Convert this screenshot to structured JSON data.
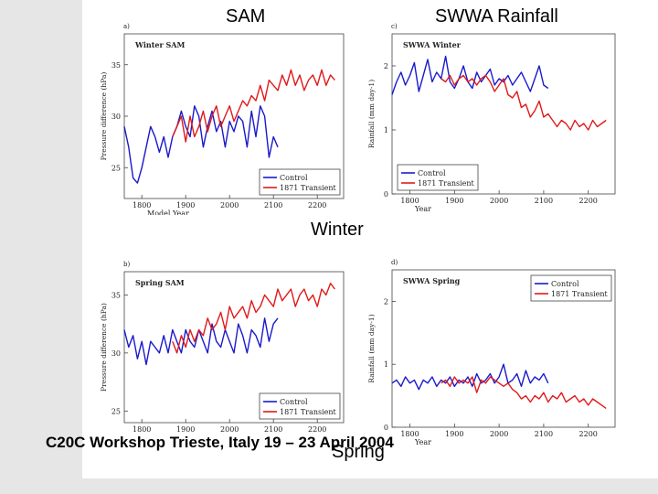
{
  "headings": {
    "sam": "SAM",
    "swwa": "SWWA Rainfall",
    "winter": "Winter",
    "spring": "Spring",
    "footer": "C20C Workshop Trieste, Italy 19 – 23 April 2004"
  },
  "colors": {
    "control": "#1a1acc",
    "transient": "#e01a1a"
  },
  "chart_data": [
    {
      "id": "a",
      "panel_label": "a)",
      "type": "line",
      "title": "Winter SAM",
      "xlabel": "Model Year",
      "ylabel": "Pressure difference (hPa)",
      "xlim": [
        1760,
        2260
      ],
      "ylim": [
        22,
        38
      ],
      "xticks": [
        1800,
        1900,
        2000,
        2100,
        2200
      ],
      "yticks": [
        25,
        30,
        35
      ],
      "legend_position": "bottom-right",
      "series": [
        {
          "name": "Control",
          "x": [
            1760,
            1770,
            1780,
            1790,
            1800,
            1810,
            1820,
            1830,
            1840,
            1850,
            1860,
            1870,
            1880,
            1890,
            1900,
            1910,
            1920,
            1930,
            1940,
            1950,
            1960,
            1970,
            1980,
            1990,
            2000,
            2010,
            2020,
            2030,
            2040,
            2050,
            2060,
            2070,
            2080,
            2090,
            2100,
            2110
          ],
          "y": [
            29,
            27,
            24,
            23.5,
            25,
            27,
            29,
            28,
            26.5,
            28,
            26,
            28,
            29,
            30.5,
            29,
            28,
            31,
            30,
            27,
            29,
            30.5,
            28.5,
            29.5,
            27,
            29.5,
            28.5,
            30,
            29.5,
            27,
            30.5,
            28,
            31,
            30,
            26,
            28,
            27
          ]
        },
        {
          "name": "1871 Transient",
          "x": [
            1870,
            1880,
            1890,
            1900,
            1910,
            1920,
            1930,
            1940,
            1950,
            1960,
            1970,
            1980,
            1990,
            2000,
            2010,
            2020,
            2030,
            2040,
            2050,
            2060,
            2070,
            2080,
            2090,
            2100,
            2110,
            2120,
            2130,
            2140,
            2150,
            2160,
            2170,
            2180,
            2190,
            2200,
            2210,
            2220,
            2230,
            2240
          ],
          "y": [
            28,
            29,
            30,
            27.5,
            30,
            28,
            29,
            30.5,
            28.5,
            30,
            31,
            29,
            30,
            31,
            29.5,
            30.5,
            31.5,
            31,
            32,
            31.5,
            33,
            31.5,
            33.5,
            33,
            32.5,
            34,
            33,
            34.5,
            33,
            34,
            32.5,
            33.5,
            34,
            33,
            34.5,
            33,
            34,
            33.5
          ]
        }
      ]
    },
    {
      "id": "b",
      "panel_label": "b)",
      "type": "line",
      "title": "Spring SAM",
      "xlabel": "",
      "ylabel": "Pressure difference (hPa)",
      "xlim": [
        1760,
        2260
      ],
      "ylim": [
        24,
        37
      ],
      "xticks": [
        1800,
        1900,
        2000,
        2100,
        2200
      ],
      "yticks": [
        25,
        30,
        35
      ],
      "legend_position": "bottom-right",
      "series": [
        {
          "name": "Control",
          "x": [
            1760,
            1770,
            1780,
            1790,
            1800,
            1810,
            1820,
            1830,
            1840,
            1850,
            1860,
            1870,
            1880,
            1890,
            1900,
            1910,
            1920,
            1930,
            1940,
            1950,
            1960,
            1970,
            1980,
            1990,
            2000,
            2010,
            2020,
            2030,
            2040,
            2050,
            2060,
            2070,
            2080,
            2090,
            2100,
            2110
          ],
          "y": [
            32,
            30.5,
            31.5,
            29.5,
            31,
            29,
            31,
            30.5,
            30,
            31.5,
            30,
            32,
            31,
            30,
            32,
            31,
            30.5,
            32,
            31,
            30,
            32.5,
            31,
            30.5,
            32,
            31,
            30,
            32.5,
            31.5,
            30,
            32,
            31.5,
            30.5,
            33,
            31,
            32.5,
            33
          ]
        },
        {
          "name": "1871 Transient",
          "x": [
            1870,
            1880,
            1890,
            1900,
            1910,
            1920,
            1930,
            1940,
            1950,
            1960,
            1970,
            1980,
            1990,
            2000,
            2010,
            2020,
            2030,
            2040,
            2050,
            2060,
            2070,
            2080,
            2090,
            2100,
            2110,
            2120,
            2130,
            2140,
            2150,
            2160,
            2170,
            2180,
            2190,
            2200,
            2210,
            2220,
            2230,
            2240
          ],
          "y": [
            31,
            30,
            31.5,
            30.5,
            32,
            31,
            32,
            31.5,
            33,
            32,
            32.5,
            33.5,
            32,
            34,
            33,
            33.5,
            34,
            33,
            34.5,
            33.5,
            34,
            35,
            34.5,
            34,
            35.5,
            34.5,
            35,
            35.5,
            34,
            35,
            35.5,
            34.5,
            35,
            34,
            35.5,
            35,
            36,
            35.5
          ]
        }
      ]
    },
    {
      "id": "c",
      "panel_label": "c)",
      "type": "line",
      "title": "SWWA Winter",
      "xlabel": "Year",
      "ylabel": "Rainfall (mm day-1)",
      "xlim": [
        1760,
        2260
      ],
      "ylim": [
        0,
        2.5
      ],
      "xticks": [
        1800,
        1900,
        2000,
        2100,
        2200
      ],
      "yticks": [
        0,
        1,
        2
      ],
      "legend_position": "bottom-left",
      "series": [
        {
          "name": "Control",
          "x": [
            1760,
            1770,
            1780,
            1790,
            1800,
            1810,
            1820,
            1830,
            1840,
            1850,
            1860,
            1870,
            1880,
            1890,
            1900,
            1910,
            1920,
            1930,
            1940,
            1950,
            1960,
            1970,
            1980,
            1990,
            2000,
            2010,
            2020,
            2030,
            2040,
            2050,
            2060,
            2070,
            2080,
            2090,
            2100,
            2110
          ],
          "y": [
            1.55,
            1.75,
            1.9,
            1.7,
            1.85,
            2.05,
            1.6,
            1.85,
            2.1,
            1.75,
            1.9,
            1.8,
            2.15,
            1.75,
            1.65,
            1.8,
            2.0,
            1.75,
            1.65,
            1.9,
            1.75,
            1.85,
            1.95,
            1.7,
            1.8,
            1.75,
            1.85,
            1.7,
            1.8,
            1.9,
            1.75,
            1.6,
            1.8,
            2.0,
            1.7,
            1.65
          ]
        },
        {
          "name": "1871 Transient",
          "x": [
            1870,
            1880,
            1890,
            1900,
            1910,
            1920,
            1930,
            1940,
            1950,
            1960,
            1970,
            1980,
            1990,
            2000,
            2010,
            2020,
            2030,
            2040,
            2050,
            2060,
            2070,
            2080,
            2090,
            2100,
            2110,
            2120,
            2130,
            2140,
            2150,
            2160,
            2170,
            2180,
            2190,
            2200,
            2210,
            2220,
            2230,
            2240
          ],
          "y": [
            1.8,
            1.75,
            1.85,
            1.7,
            1.8,
            1.85,
            1.75,
            1.8,
            1.7,
            1.8,
            1.85,
            1.75,
            1.6,
            1.7,
            1.8,
            1.55,
            1.5,
            1.6,
            1.35,
            1.4,
            1.2,
            1.3,
            1.45,
            1.2,
            1.25,
            1.15,
            1.05,
            1.15,
            1.1,
            1.0,
            1.15,
            1.05,
            1.1,
            1.0,
            1.15,
            1.05,
            1.1,
            1.15
          ]
        }
      ]
    },
    {
      "id": "d",
      "panel_label": "d)",
      "type": "line",
      "title": "SWWA Spring",
      "xlabel": "Year",
      "ylabel": "Rainfall (mm day-1)",
      "xlim": [
        1760,
        2260
      ],
      "ylim": [
        0,
        2.5
      ],
      "xticks": [
        1800,
        1900,
        2000,
        2100,
        2200
      ],
      "yticks": [
        0,
        1,
        2
      ],
      "legend_position": "top-right",
      "series": [
        {
          "name": "Control",
          "x": [
            1760,
            1770,
            1780,
            1790,
            1800,
            1810,
            1820,
            1830,
            1840,
            1850,
            1860,
            1870,
            1880,
            1890,
            1900,
            1910,
            1920,
            1930,
            1940,
            1950,
            1960,
            1970,
            1980,
            1990,
            2000,
            2010,
            2020,
            2030,
            2040,
            2050,
            2060,
            2070,
            2080,
            2090,
            2100,
            2110
          ],
          "y": [
            0.7,
            0.75,
            0.65,
            0.8,
            0.7,
            0.75,
            0.6,
            0.75,
            0.7,
            0.8,
            0.65,
            0.75,
            0.7,
            0.8,
            0.65,
            0.75,
            0.7,
            0.8,
            0.65,
            0.85,
            0.7,
            0.75,
            0.85,
            0.7,
            0.8,
            1.0,
            0.7,
            0.75,
            0.85,
            0.65,
            0.9,
            0.7,
            0.8,
            0.75,
            0.85,
            0.7
          ]
        },
        {
          "name": "1871 Transient",
          "x": [
            1870,
            1880,
            1890,
            1900,
            1910,
            1920,
            1930,
            1940,
            1950,
            1960,
            1970,
            1980,
            1990,
            2000,
            2010,
            2020,
            2030,
            2040,
            2050,
            2060,
            2070,
            2080,
            2090,
            2100,
            2110,
            2120,
            2130,
            2140,
            2150,
            2160,
            2170,
            2180,
            2190,
            2200,
            2210,
            2220,
            2230,
            2240
          ],
          "y": [
            0.7,
            0.75,
            0.65,
            0.8,
            0.7,
            0.75,
            0.7,
            0.8,
            0.55,
            0.75,
            0.7,
            0.8,
            0.75,
            0.7,
            0.65,
            0.7,
            0.6,
            0.55,
            0.45,
            0.5,
            0.4,
            0.5,
            0.45,
            0.55,
            0.4,
            0.5,
            0.45,
            0.55,
            0.4,
            0.45,
            0.5,
            0.4,
            0.45,
            0.35,
            0.45,
            0.4,
            0.35,
            0.3
          ]
        }
      ]
    }
  ]
}
